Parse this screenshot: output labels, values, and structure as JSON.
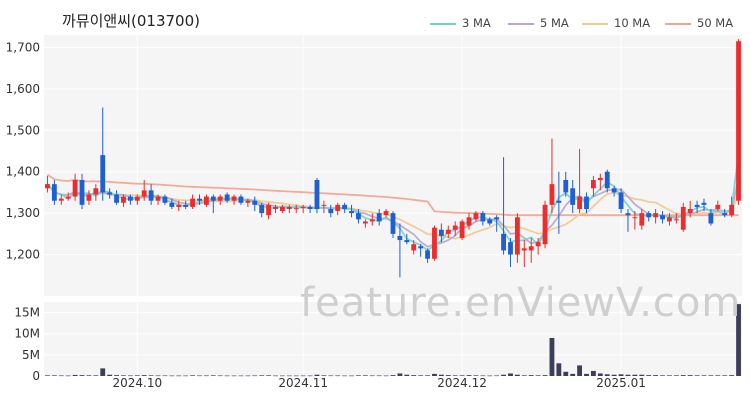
{
  "chart_data": {
    "type": "candlestick",
    "title": "까뮤이앤씨(013700)",
    "watermark": "feature.enViewV.com",
    "legend": [
      {
        "name": "3 MA",
        "color": "#6fd3d6"
      },
      {
        "name": "5 MA",
        "color": "#b9a6cc"
      },
      {
        "name": "10 MA",
        "color": "#f2c98f"
      },
      {
        "name": "50 MA",
        "color": "#f2a38f"
      }
    ],
    "colors": {
      "up": "#ef2b2b",
      "down": "#1f5fd1",
      "volume": "#3d3d5c",
      "plot_bg": "#f5f5f5",
      "grid": "#ffffff"
    },
    "price_axis": {
      "ylim": [
        1100,
        1730
      ],
      "ticks": [
        "1,200",
        "1,300",
        "1,400",
        "1,500",
        "1,600",
        "1,700"
      ],
      "tick_values": [
        1200,
        1300,
        1400,
        1500,
        1600,
        1700
      ]
    },
    "volume_axis": {
      "ylim": [
        0,
        17500000
      ],
      "ticks": [
        "0",
        "5M",
        "10M",
        "15M"
      ],
      "tick_values": [
        0,
        5000000,
        10000000,
        15000000
      ]
    },
    "x_ticks": [
      {
        "label": "2024.10",
        "index": 13
      },
      {
        "label": "2024.11",
        "index": 37
      },
      {
        "label": "2024.12",
        "index": 60
      },
      {
        "label": "2025.01",
        "index": 83
      }
    ],
    "candles": [
      [
        1360,
        1390,
        1350,
        1370
      ],
      [
        1370,
        1380,
        1320,
        1330
      ],
      [
        1330,
        1345,
        1320,
        1335
      ],
      [
        1335,
        1350,
        1330,
        1340
      ],
      [
        1340,
        1395,
        1330,
        1380
      ],
      [
        1380,
        1395,
        1310,
        1320
      ],
      [
        1330,
        1355,
        1320,
        1345
      ],
      [
        1345,
        1370,
        1330,
        1360
      ],
      [
        1440,
        1555,
        1330,
        1350
      ],
      [
        1350,
        1360,
        1335,
        1345
      ],
      [
        1345,
        1355,
        1320,
        1325
      ],
      [
        1325,
        1345,
        1315,
        1340
      ],
      [
        1340,
        1345,
        1320,
        1330
      ],
      [
        1330,
        1345,
        1320,
        1340
      ],
      [
        1340,
        1380,
        1330,
        1355
      ],
      [
        1355,
        1370,
        1320,
        1330
      ],
      [
        1330,
        1345,
        1320,
        1340
      ],
      [
        1340,
        1345,
        1320,
        1325
      ],
      [
        1325,
        1335,
        1310,
        1315
      ],
      [
        1315,
        1330,
        1305,
        1320
      ],
      [
        1320,
        1330,
        1310,
        1315
      ],
      [
        1315,
        1345,
        1310,
        1335
      ],
      [
        1335,
        1345,
        1320,
        1330
      ],
      [
        1320,
        1345,
        1315,
        1340
      ],
      [
        1340,
        1345,
        1300,
        1330
      ],
      [
        1330,
        1345,
        1320,
        1340
      ],
      [
        1345,
        1350,
        1325,
        1330
      ],
      [
        1330,
        1345,
        1320,
        1340
      ],
      [
        1340,
        1345,
        1320,
        1325
      ],
      [
        1325,
        1335,
        1315,
        1330
      ],
      [
        1330,
        1340,
        1305,
        1320
      ],
      [
        1320,
        1325,
        1290,
        1300
      ],
      [
        1295,
        1325,
        1285,
        1320
      ],
      [
        1310,
        1320,
        1300,
        1315
      ],
      [
        1305,
        1320,
        1300,
        1315
      ],
      [
        1310,
        1320,
        1300,
        1315
      ],
      [
        1310,
        1320,
        1300,
        1312
      ],
      [
        1312,
        1320,
        1300,
        1315
      ],
      [
        1315,
        1320,
        1300,
        1310
      ],
      [
        1380,
        1385,
        1300,
        1310
      ],
      [
        1320,
        1330,
        1300,
        1320
      ],
      [
        1310,
        1320,
        1290,
        1300
      ],
      [
        1305,
        1325,
        1295,
        1320
      ],
      [
        1320,
        1325,
        1300,
        1310
      ],
      [
        1305,
        1320,
        1290,
        1300
      ],
      [
        1300,
        1310,
        1275,
        1285
      ],
      [
        1275,
        1285,
        1265,
        1280
      ],
      [
        1280,
        1300,
        1270,
        1285
      ],
      [
        1300,
        1310,
        1270,
        1280
      ],
      [
        1295,
        1310,
        1290,
        1305
      ],
      [
        1300,
        1305,
        1240,
        1250
      ],
      [
        1245,
        1275,
        1145,
        1235
      ],
      [
        1235,
        1250,
        1225,
        1230
      ],
      [
        1210,
        1235,
        1200,
        1225
      ],
      [
        1220,
        1225,
        1195,
        1215
      ],
      [
        1210,
        1215,
        1180,
        1190
      ],
      [
        1190,
        1270,
        1185,
        1265
      ],
      [
        1260,
        1275,
        1230,
        1245
      ],
      [
        1250,
        1270,
        1240,
        1260
      ],
      [
        1260,
        1280,
        1245,
        1270
      ],
      [
        1240,
        1285,
        1235,
        1280
      ],
      [
        1270,
        1300,
        1260,
        1290
      ],
      [
        1285,
        1305,
        1280,
        1300
      ],
      [
        1300,
        1305,
        1270,
        1280
      ],
      [
        1285,
        1290,
        1270,
        1275
      ],
      [
        1290,
        1295,
        1255,
        1285
      ],
      [
        1250,
        1435,
        1200,
        1210
      ],
      [
        1230,
        1240,
        1170,
        1200
      ],
      [
        1200,
        1300,
        1180,
        1290
      ],
      [
        1210,
        1235,
        1170,
        1215
      ],
      [
        1210,
        1240,
        1180,
        1220
      ],
      [
        1220,
        1240,
        1200,
        1230
      ],
      [
        1225,
        1330,
        1215,
        1320
      ],
      [
        1320,
        1480,
        1300,
        1370
      ],
      [
        1330,
        1400,
        1250,
        1325
      ],
      [
        1380,
        1400,
        1340,
        1350
      ],
      [
        1360,
        1380,
        1300,
        1320
      ],
      [
        1310,
        1455,
        1300,
        1340
      ],
      [
        1340,
        1350,
        1300,
        1310
      ],
      [
        1360,
        1390,
        1340,
        1380
      ],
      [
        1380,
        1395,
        1355,
        1385
      ],
      [
        1400,
        1405,
        1350,
        1360
      ],
      [
        1360,
        1365,
        1340,
        1350
      ],
      [
        1350,
        1360,
        1300,
        1310
      ],
      [
        1300,
        1310,
        1255,
        1295
      ],
      [
        1290,
        1305,
        1260,
        1290
      ],
      [
        1270,
        1310,
        1260,
        1300
      ],
      [
        1300,
        1305,
        1280,
        1290
      ],
      [
        1290,
        1310,
        1275,
        1300
      ],
      [
        1295,
        1305,
        1275,
        1285
      ],
      [
        1280,
        1300,
        1270,
        1290
      ],
      [
        1285,
        1300,
        1275,
        1285
      ],
      [
        1260,
        1325,
        1255,
        1315
      ],
      [
        1300,
        1330,
        1290,
        1310
      ],
      [
        1320,
        1330,
        1300,
        1315
      ],
      [
        1325,
        1335,
        1305,
        1320
      ],
      [
        1300,
        1310,
        1270,
        1275
      ],
      [
        1310,
        1330,
        1305,
        1320
      ],
      [
        1300,
        1310,
        1290,
        1295
      ],
      [
        1295,
        1340,
        1290,
        1320
      ],
      [
        1330,
        1720,
        1320,
        1715
      ]
    ],
    "volume": [
      150000,
      150000,
      120000,
      100000,
      250000,
      200000,
      150000,
      150000,
      1800000,
      300000,
      200000,
      150000,
      120000,
      150000,
      200000,
      150000,
      120000,
      120000,
      100000,
      100000,
      100000,
      150000,
      120000,
      120000,
      150000,
      120000,
      100000,
      100000,
      100000,
      100000,
      120000,
      150000,
      150000,
      100000,
      100000,
      100000,
      100000,
      100000,
      100000,
      300000,
      150000,
      120000,
      120000,
      100000,
      100000,
      150000,
      150000,
      120000,
      120000,
      100000,
      200000,
      600000,
      300000,
      200000,
      150000,
      150000,
      500000,
      300000,
      200000,
      150000,
      150000,
      200000,
      150000,
      120000,
      100000,
      120000,
      300000,
      600000,
      300000,
      150000,
      200000,
      150000,
      200000,
      9000000,
      3000000,
      1000000,
      500000,
      2500000,
      500000,
      1200000,
      600000,
      400000,
      300000,
      400000,
      300000,
      300000,
      300000,
      200000,
      200000,
      150000,
      150000,
      150000,
      200000,
      200000,
      150000,
      150000,
      150000,
      150000,
      150000,
      200000,
      17000000
    ]
  }
}
